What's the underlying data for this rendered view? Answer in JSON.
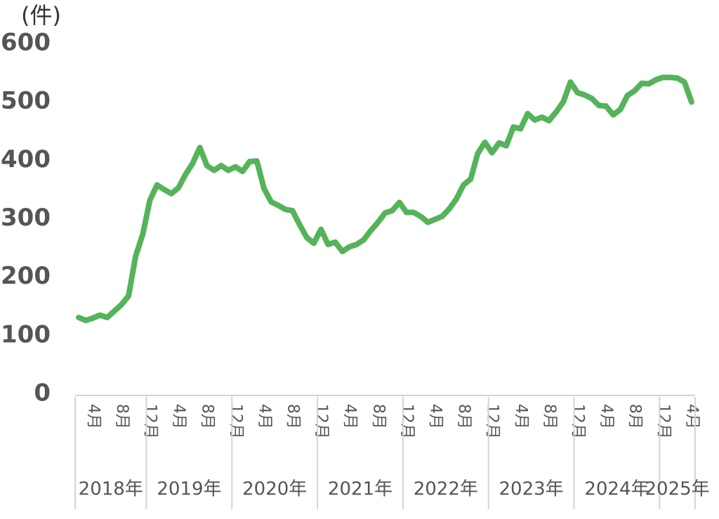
{
  "chart_data": {
    "type": "line",
    "unit_label": "(件)",
    "categories": [
      null,
      null,
      "4月",
      null,
      null,
      null,
      "8月",
      null,
      null,
      null,
      "12月",
      null,
      null,
      null,
      "4月",
      null,
      null,
      null,
      "8月",
      null,
      null,
      null,
      "12月",
      null,
      null,
      null,
      "4月",
      null,
      null,
      null,
      "8月",
      null,
      null,
      null,
      "12月",
      null,
      null,
      null,
      "4月",
      null,
      null,
      null,
      "8月",
      null,
      null,
      null,
      "12月",
      null,
      null,
      null,
      "4月",
      null,
      null,
      null,
      "8月",
      null,
      null,
      null,
      "12月",
      null,
      null,
      null,
      "4月",
      null,
      null,
      null,
      "8月",
      null,
      null,
      null,
      "12月",
      null,
      null,
      null,
      "4月",
      null,
      null,
      null,
      "8月",
      null,
      null,
      null,
      "12月",
      null,
      null,
      null,
      "4月"
    ],
    "x_groups": [
      "2018年",
      "2019年",
      "2020年",
      "2021年",
      "2022年",
      "2023年",
      "2024年",
      "2025年"
    ],
    "series": [
      {
        "color": "#55b35a",
        "values": [
          131,
          126,
          130,
          135,
          131,
          142,
          153,
          168,
          236,
          274,
          332,
          358,
          350,
          343,
          353,
          376,
          395,
          422,
          391,
          383,
          391,
          383,
          389,
          381,
          398,
          399,
          352,
          329,
          323,
          316,
          314,
          290,
          268,
          258,
          282,
          256,
          260,
          244,
          252,
          256,
          264,
          280,
          294,
          310,
          314,
          328,
          311,
          311,
          304,
          294,
          299,
          304,
          317,
          334,
          358,
          368,
          412,
          431,
          413,
          430,
          425,
          457,
          454,
          480,
          469,
          474,
          468,
          483,
          500,
          534,
          516,
          512,
          506,
          494,
          493,
          478,
          487,
          511,
          519,
          532,
          531,
          538,
          542,
          542,
          541,
          534,
          500
        ]
      }
    ],
    "ylim": [
      0,
      600
    ],
    "yticks": [
      0,
      100,
      200,
      300,
      400,
      500,
      600
    ]
  }
}
